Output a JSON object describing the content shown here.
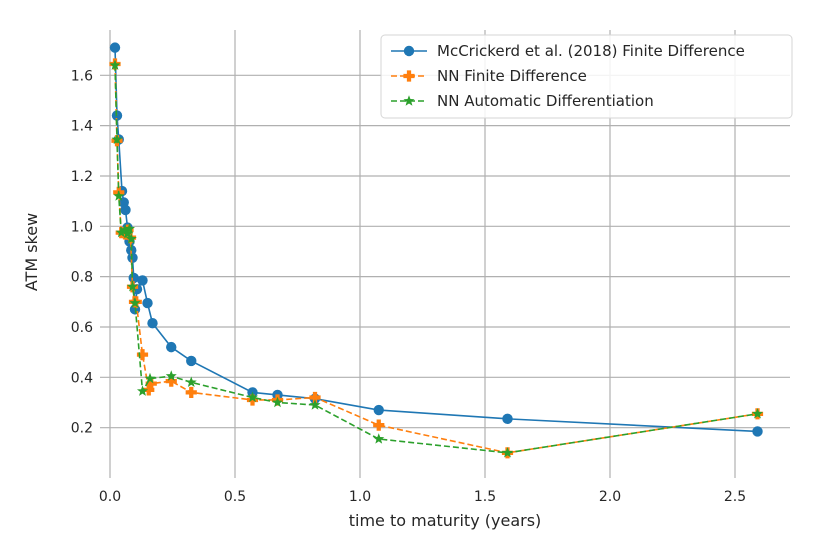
{
  "chart_data": {
    "type": "line",
    "xlabel": "time to maturity (years)",
    "ylabel": "ATM skew",
    "xlim": [
      -0.04,
      2.72
    ],
    "ylim": [
      0.0,
      1.78
    ],
    "xticks": [
      0.0,
      0.5,
      1.0,
      1.5,
      2.0,
      2.5
    ],
    "xtick_labels": [
      "0.0",
      "0.5",
      "1.0",
      "1.5",
      "2.0",
      "2.5"
    ],
    "yticks": [
      0.2,
      0.4,
      0.6,
      0.8,
      1.0,
      1.2,
      1.4,
      1.6
    ],
    "ytick_labels": [
      "0.2",
      "0.4",
      "0.6",
      "0.8",
      "1.0",
      "1.2",
      "1.4",
      "1.6"
    ],
    "grid": true,
    "legend_position": "top-right",
    "series": [
      {
        "name": "McCrickerd et al. (2018) Finite Difference",
        "color": "#1f77b4",
        "marker": "circle",
        "linestyle": "solid",
        "x": [
          0.02,
          0.028,
          0.035,
          0.048,
          0.055,
          0.062,
          0.07,
          0.078,
          0.085,
          0.09,
          0.095,
          0.1,
          0.108,
          0.13,
          0.15,
          0.17,
          0.245,
          0.325,
          0.57,
          0.67,
          0.82,
          1.075,
          1.59,
          2.59
        ],
        "y": [
          1.71,
          1.44,
          1.345,
          1.14,
          1.095,
          1.065,
          0.995,
          0.94,
          0.905,
          0.875,
          0.795,
          0.67,
          0.75,
          0.785,
          0.695,
          0.615,
          0.52,
          0.465,
          0.34,
          0.33,
          0.315,
          0.27,
          0.235,
          0.185
        ]
      },
      {
        "name": "NN Finite Difference",
        "color": "#ff7f0e",
        "marker": "plus",
        "linestyle": "dashed",
        "x": [
          0.02,
          0.028,
          0.035,
          0.045,
          0.06,
          0.072,
          0.082,
          0.09,
          0.098,
          0.105,
          0.13,
          0.155,
          0.165,
          0.245,
          0.325,
          0.57,
          0.67,
          0.82,
          1.075,
          1.59,
          2.59
        ],
        "y": [
          1.645,
          1.34,
          1.135,
          0.975,
          0.97,
          0.985,
          0.955,
          0.76,
          0.7,
          0.7,
          0.49,
          0.35,
          0.375,
          0.385,
          0.34,
          0.31,
          0.31,
          0.32,
          0.21,
          0.1,
          0.255
        ]
      },
      {
        "name": "NN Automatic Differentiation",
        "color": "#2ca02c",
        "marker": "star",
        "linestyle": "dashed",
        "x": [
          0.02,
          0.028,
          0.035,
          0.045,
          0.06,
          0.07,
          0.078,
          0.085,
          0.09,
          0.1,
          0.13,
          0.16,
          0.245,
          0.325,
          0.57,
          0.67,
          0.82,
          1.075,
          1.59,
          2.59
        ],
        "y": [
          1.64,
          1.345,
          1.12,
          0.975,
          0.985,
          0.97,
          0.99,
          0.95,
          0.76,
          0.695,
          0.345,
          0.395,
          0.405,
          0.38,
          0.32,
          0.3,
          0.29,
          0.155,
          0.1,
          0.255
        ]
      }
    ]
  }
}
